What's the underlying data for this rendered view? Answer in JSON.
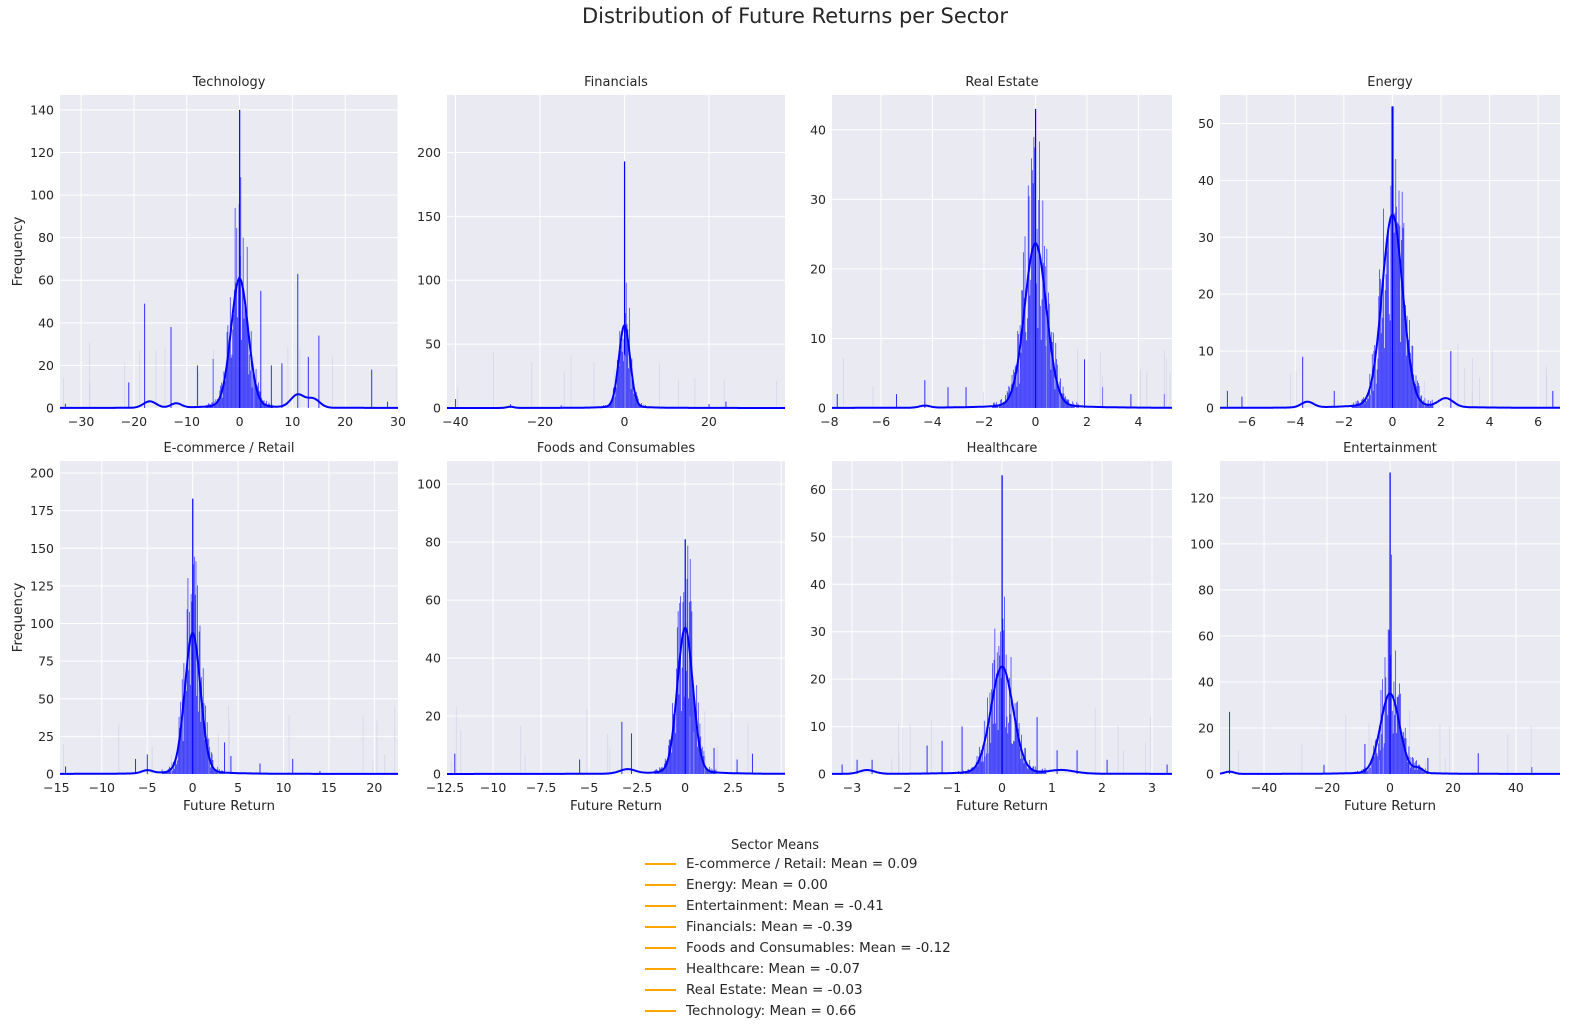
{
  "title": "Distribution of Future Returns per Sector",
  "colors": {
    "bar": "#0000ff",
    "kde": "#0000ff",
    "mean_line": "#ffa500",
    "axes_bg": "#eaeaf2",
    "grid": "#ffffff"
  },
  "legend": {
    "title": "Sector Means",
    "items": [
      "E-commerce / Retail: Mean = 0.09",
      "Energy: Mean = 0.00",
      "Entertainment: Mean = -0.41",
      "Financials: Mean = -0.39",
      "Foods and Consumables: Mean = -0.12",
      "Healthcare: Mean = -0.07",
      "Real Estate: Mean = -0.03",
      "Technology: Mean = 0.66"
    ]
  },
  "chart_data": [
    {
      "type": "bar",
      "title": "Technology",
      "xlabel": "",
      "ylabel": "Frequency",
      "xlim": [
        -34,
        30
      ],
      "ylim": [
        0,
        147
      ],
      "xticks": [
        -30,
        -20,
        -10,
        0,
        10,
        20,
        30
      ],
      "yticks": [
        0,
        20,
        40,
        60,
        80,
        100,
        120,
        140
      ],
      "center": 0,
      "kde_peak": 59,
      "kde_width": 1.6,
      "hist_peak": 140,
      "mean": 0.66,
      "outliers": [
        [
          -33,
          2
        ],
        [
          -21,
          12
        ],
        [
          -18,
          49
        ],
        [
          -13,
          38
        ],
        [
          -8,
          20
        ],
        [
          -5,
          23
        ],
        [
          4,
          55
        ],
        [
          6,
          20
        ],
        [
          8,
          21
        ],
        [
          11,
          63
        ],
        [
          13,
          24
        ],
        [
          15,
          34
        ],
        [
          25,
          18
        ],
        [
          28,
          3
        ]
      ],
      "bumps": [
        [
          -17,
          3,
          1.2
        ],
        [
          -12,
          2,
          1.0
        ],
        [
          11,
          6,
          1.3
        ],
        [
          14,
          4,
          1.2
        ]
      ]
    },
    {
      "type": "bar",
      "title": "Financials",
      "xlabel": "",
      "ylabel": "",
      "xlim": [
        -42,
        38
      ],
      "ylim": [
        0,
        245
      ],
      "xticks": [
        -40,
        -20,
        0,
        20
      ],
      "yticks": [
        0,
        50,
        100,
        150,
        200
      ],
      "center": 0,
      "kde_peak": 63,
      "kde_width": 1.3,
      "hist_peak": 193,
      "mean": -0.39,
      "outliers": [
        [
          -40,
          7
        ],
        [
          -27,
          3
        ],
        [
          -15,
          2
        ],
        [
          20,
          3
        ],
        [
          24,
          5
        ]
      ],
      "bumps": [
        [
          -27,
          1,
          0.8
        ]
      ]
    },
    {
      "type": "bar",
      "title": "Real Estate",
      "xlabel": "",
      "ylabel": "",
      "xlim": [
        -7.9,
        5.3
      ],
      "ylim": [
        0,
        45
      ],
      "xticks": [
        -8,
        -6,
        -4,
        -2,
        0,
        2,
        4
      ],
      "yticks": [
        0,
        10,
        20,
        30,
        40
      ],
      "center": 0,
      "kde_peak": 23,
      "kde_width": 0.42,
      "hist_peak": 43,
      "mean": -0.03,
      "outliers": [
        [
          -7.7,
          2
        ],
        [
          -5.4,
          2
        ],
        [
          -4.3,
          4
        ],
        [
          -3.4,
          3
        ],
        [
          -2.7,
          3
        ],
        [
          1.9,
          7
        ],
        [
          2.6,
          3
        ],
        [
          3.7,
          2
        ],
        [
          5.0,
          2
        ]
      ],
      "bumps": [
        [
          -4.3,
          0.3,
          0.2
        ]
      ]
    },
    {
      "type": "bar",
      "title": "Energy",
      "xlabel": "",
      "ylabel": "",
      "xlim": [
        -7.1,
        6.9
      ],
      "ylim": [
        0,
        55
      ],
      "xticks": [
        -6,
        -4,
        -2,
        0,
        2,
        4,
        6
      ],
      "yticks": [
        0,
        10,
        20,
        30,
        40,
        50
      ],
      "center": 0,
      "kde_peak": 33,
      "kde_width": 0.42,
      "hist_peak": 53,
      "mean": 0.0,
      "outliers": [
        [
          -6.8,
          3
        ],
        [
          -6.2,
          2
        ],
        [
          -3.7,
          9
        ],
        [
          -2.4,
          3
        ],
        [
          2.4,
          10
        ],
        [
          6.6,
          3
        ]
      ],
      "bumps": [
        [
          -3.5,
          1,
          0.25
        ],
        [
          2.2,
          1.5,
          0.3
        ]
      ]
    },
    {
      "type": "bar",
      "title": "E-commerce / Retail",
      "xlabel": "Future Return",
      "ylabel": "Frequency",
      "xlim": [
        -14.6,
        22.6
      ],
      "ylim": [
        0,
        208
      ],
      "xticks": [
        -15,
        -10,
        -5,
        0,
        5,
        10,
        15,
        20
      ],
      "yticks": [
        0,
        25,
        50,
        75,
        100,
        125,
        150,
        175,
        200
      ],
      "center": 0,
      "kde_peak": 91,
      "kde_width": 0.85,
      "hist_peak": 183,
      "mean": 0.09,
      "outliers": [
        [
          -14,
          5
        ],
        [
          -6.3,
          10
        ],
        [
          -5,
          13
        ],
        [
          3.5,
          21
        ],
        [
          4.2,
          12
        ],
        [
          7.4,
          7
        ],
        [
          11,
          10
        ],
        [
          14,
          2
        ]
      ],
      "bumps": [
        [
          -5,
          2,
          0.6
        ]
      ]
    },
    {
      "type": "bar",
      "title": "Foods and Consumables",
      "xlabel": "Future Return",
      "ylabel": "",
      "xlim": [
        -12.4,
        5.2
      ],
      "ylim": [
        0,
        108
      ],
      "xticks": [
        -12.5,
        -10.0,
        -7.5,
        -5.0,
        -2.5,
        0.0,
        2.5,
        5.0
      ],
      "yticks": [
        0,
        20,
        40,
        60,
        80,
        100
      ],
      "center": 0,
      "kde_peak": 49,
      "kde_width": 0.4,
      "hist_peak": 81,
      "mean": -0.12,
      "outliers": [
        [
          -12,
          7
        ],
        [
          -5.5,
          5
        ],
        [
          -3.3,
          18
        ],
        [
          -2.8,
          14
        ],
        [
          1.5,
          9
        ],
        [
          2.7,
          5
        ],
        [
          3.5,
          7
        ]
      ],
      "bumps": [
        [
          -3,
          1.5,
          0.4
        ]
      ]
    },
    {
      "type": "bar",
      "title": "Healthcare",
      "xlabel": "Future Return",
      "ylabel": "",
      "xlim": [
        -3.4,
        3.4
      ],
      "ylim": [
        0,
        66
      ],
      "xticks": [
        -3,
        -2,
        -1,
        0,
        1,
        2,
        3
      ],
      "yticks": [
        0,
        10,
        20,
        30,
        40,
        50,
        60
      ],
      "center": 0,
      "kde_peak": 22,
      "kde_width": 0.22,
      "hist_peak": 63,
      "mean": -0.07,
      "outliers": [
        [
          -3.2,
          2
        ],
        [
          -2.9,
          3
        ],
        [
          -2.6,
          3
        ],
        [
          -1.5,
          6
        ],
        [
          -1.2,
          7
        ],
        [
          -0.8,
          10
        ],
        [
          0.7,
          12
        ],
        [
          1.1,
          5
        ],
        [
          1.5,
          5
        ],
        [
          2.1,
          3
        ],
        [
          3.3,
          2
        ]
      ],
      "bumps": [
        [
          -2.7,
          0.8,
          0.15
        ],
        [
          1.2,
          0.7,
          0.25
        ]
      ]
    },
    {
      "type": "bar",
      "title": "Entertainment",
      "xlabel": "Future Return",
      "ylabel": "",
      "xlim": [
        -54,
        54
      ],
      "ylim": [
        0,
        136
      ],
      "xticks": [
        -40,
        -20,
        0,
        20,
        40
      ],
      "yticks": [
        0,
        20,
        40,
        60,
        80,
        100,
        120
      ],
      "center": 0,
      "kde_peak": 34,
      "kde_width": 3.0,
      "hist_peak": 131,
      "mean": -0.41,
      "outliers": [
        [
          -51,
          27
        ],
        [
          -21,
          4
        ],
        [
          -8,
          13
        ],
        [
          6,
          12
        ],
        [
          12,
          7
        ],
        [
          28,
          9
        ],
        [
          45,
          3
        ]
      ],
      "bumps": [
        [
          -51,
          1,
          1.5
        ],
        [
          9,
          2,
          1.5
        ]
      ]
    }
  ]
}
